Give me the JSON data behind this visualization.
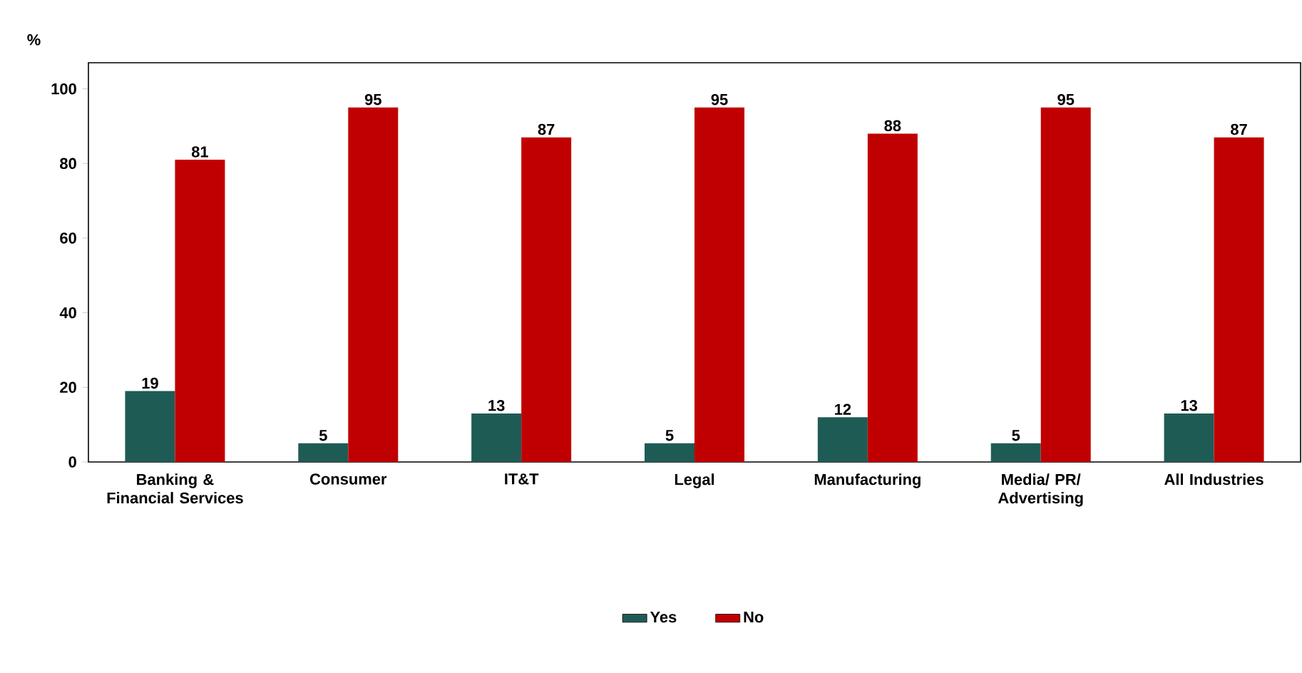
{
  "chart_data": {
    "type": "bar",
    "ylabel": "%",
    "categories": [
      "Banking & Financial Services",
      "Consumer",
      "IT&T",
      "Legal",
      "Manufacturing",
      "Media/ PR/ Advertising",
      "All Industries"
    ],
    "series": [
      {
        "name": "Yes",
        "color": "#1f5b55",
        "values": [
          19,
          5,
          13,
          5,
          12,
          5,
          13
        ]
      },
      {
        "name": "No",
        "color": "#c00000",
        "values": [
          81,
          95,
          87,
          95,
          88,
          95,
          87
        ]
      }
    ],
    "ylim": [
      0,
      107
    ],
    "yticks": [
      0,
      20,
      40,
      60,
      80,
      100
    ],
    "data_labels": true,
    "grid": false,
    "legend": "bottom"
  }
}
